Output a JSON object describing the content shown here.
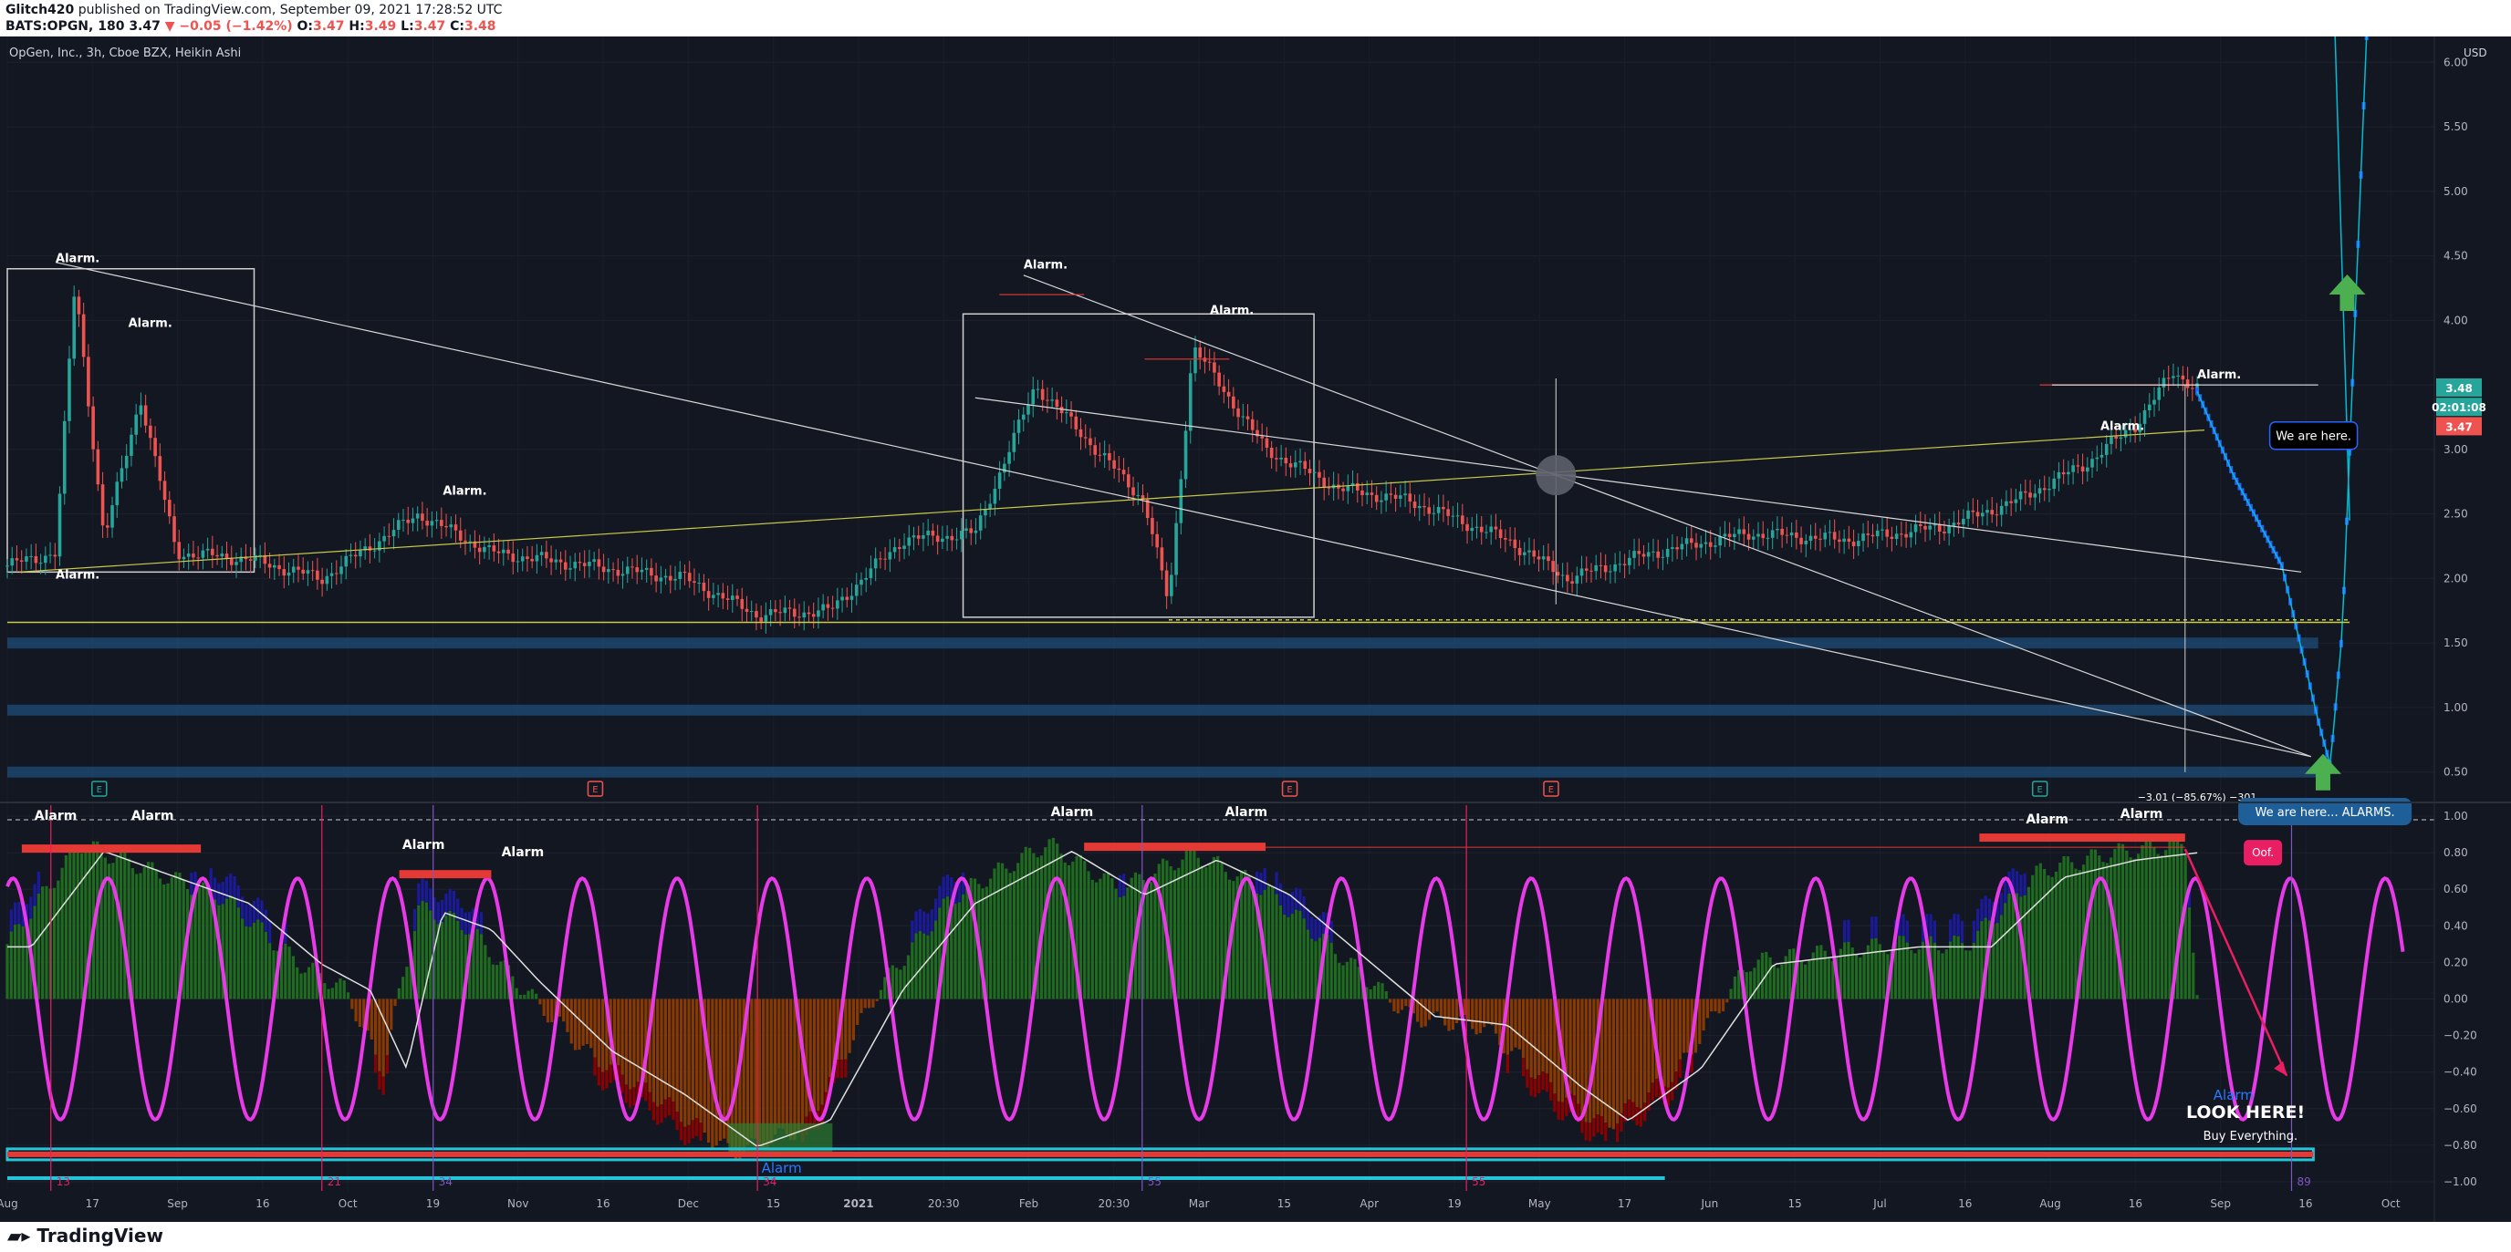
{
  "header": {
    "author": "Glitch420",
    "published": "published on TradingView.com, September 09, 2021 17:28:52 UTC",
    "ticker": "BATS:OPGN, 180",
    "last": "3.47",
    "change": "▼ −0.05 (−1.42%)",
    "ohlc": {
      "o": "3.47",
      "h": "3.49",
      "l": "3.47",
      "c": "3.48"
    }
  },
  "footer": {
    "brand": "TradingView"
  },
  "colors": {
    "background": "#131722",
    "up": "#26a69a",
    "down": "#ef5350",
    "trend": "#d8d8d8",
    "support": "#c9c94a",
    "zone": "#1f4e78",
    "sine": "#e83ae8",
    "hist_up": "#1f6b1f",
    "hist_dn": "#8a3a00",
    "hist_blue": "#1a1a9a",
    "hist_red": "#8b0000",
    "projection": "#2962ff",
    "arrow": "#4caf50"
  },
  "chart_data": [
    {
      "type": "line",
      "title": "OpGen, Inc., 3h, Cboe BZX, Heikin Ashi",
      "style": "heikin-ashi candles",
      "currency": "USD",
      "ylim": [
        0.3,
        6.2
      ],
      "y_ticks": [
        "6.00",
        "5.50",
        "5.00",
        "4.50",
        "4.00",
        "3.50",
        "3.00",
        "2.50",
        "2.00",
        "1.50",
        "1.00",
        "0.50"
      ],
      "x_labels": [
        "Aug",
        "17",
        "Sep",
        "16",
        "Oct",
        "19",
        "Nov",
        "16",
        "Dec",
        "15",
        "2021",
        "20:30",
        "Feb",
        "20:30",
        "Mar",
        "15",
        "Apr",
        "19",
        "May",
        "17",
        "Jun",
        "15",
        "Jul",
        "16",
        "Aug",
        "16",
        "Sep",
        "16",
        "Oct"
      ],
      "price_path": [
        [
          0,
          2.1
        ],
        [
          0.02,
          2.2
        ],
        [
          0.028,
          4.3
        ],
        [
          0.04,
          2.3
        ],
        [
          0.055,
          3.4
        ],
        [
          0.07,
          2.2
        ],
        [
          0.1,
          2.15
        ],
        [
          0.13,
          2.0
        ],
        [
          0.17,
          2.5
        ],
        [
          0.2,
          2.2
        ],
        [
          0.24,
          2.1
        ],
        [
          0.28,
          2.0
        ],
        [
          0.31,
          1.72
        ],
        [
          0.34,
          1.75
        ],
        [
          0.37,
          2.3
        ],
        [
          0.4,
          2.35
        ],
        [
          0.425,
          3.5
        ],
        [
          0.45,
          3.0
        ],
        [
          0.47,
          2.6
        ],
        [
          0.48,
          1.8
        ],
        [
          0.49,
          3.8
        ],
        [
          0.52,
          3.0
        ],
        [
          0.55,
          2.7
        ],
        [
          0.58,
          2.6
        ],
        [
          0.62,
          2.3
        ],
        [
          0.645,
          2.0
        ],
        [
          0.68,
          2.2
        ],
        [
          0.72,
          2.35
        ],
        [
          0.76,
          2.3
        ],
        [
          0.8,
          2.4
        ],
        [
          0.83,
          2.6
        ],
        [
          0.86,
          2.9
        ],
        [
          0.88,
          3.2
        ],
        [
          0.895,
          3.6
        ],
        [
          0.905,
          3.48
        ]
      ],
      "projection_path": [
        [
          0.905,
          3.45
        ],
        [
          0.92,
          2.8
        ],
        [
          0.94,
          2.1
        ],
        [
          0.955,
          0.9
        ],
        [
          0.96,
          0.55
        ],
        [
          0.965,
          1.6
        ],
        [
          0.975,
          6.2
        ]
      ],
      "last_price": "3.48",
      "countdown": "02:01:08",
      "last_close": "3.47",
      "measurement": "−3.01 (−85.67%) −301",
      "annotations": [
        {
          "text": "Alarm.",
          "x": 0.02,
          "y": 4.45
        },
        {
          "text": "Alarm.",
          "x": 0.05,
          "y": 3.95
        },
        {
          "text": "Alarm.",
          "x": 0.02,
          "y": 2.0
        },
        {
          "text": "Alarm.",
          "x": 0.18,
          "y": 2.65
        },
        {
          "text": "Alarm.",
          "x": 0.42,
          "y": 4.4
        },
        {
          "text": "Alarm.",
          "x": 0.497,
          "y": 4.05
        },
        {
          "text": "Alarm.",
          "x": 0.865,
          "y": 3.15
        },
        {
          "text": "Alarm.",
          "x": 0.905,
          "y": 3.55
        },
        {
          "text": "We are here.",
          "x": 0.935,
          "y": 3.1
        }
      ],
      "earnings_markers": [
        {
          "x": 0.038,
          "kind": "up"
        },
        {
          "x": 0.243,
          "kind": "down"
        },
        {
          "x": 0.53,
          "kind": "down"
        },
        {
          "x": 0.638,
          "kind": "down"
        },
        {
          "x": 0.84,
          "kind": "up"
        }
      ]
    },
    {
      "type": "bar",
      "title": "",
      "ylim": [
        -1.05,
        1.05
      ],
      "y_ticks": [
        "1.00",
        "0.80",
        "0.60",
        "0.40",
        "0.20",
        "0.00",
        "−0.20",
        "−0.40",
        "−0.60",
        "−0.80",
        "−1.00"
      ],
      "histogram_profile": [
        [
          0,
          0.3
        ],
        [
          0.03,
          0.85
        ],
        [
          0.06,
          0.7
        ],
        [
          0.09,
          0.55
        ],
        [
          0.12,
          0.2
        ],
        [
          0.14,
          0.05
        ],
        [
          0.155,
          -0.4
        ],
        [
          0.17,
          0.5
        ],
        [
          0.19,
          0.4
        ],
        [
          0.21,
          0.1
        ],
        [
          0.24,
          -0.3
        ],
        [
          0.27,
          -0.55
        ],
        [
          0.3,
          -0.85
        ],
        [
          0.33,
          -0.7
        ],
        [
          0.36,
          0.05
        ],
        [
          0.39,
          0.55
        ],
        [
          0.43,
          0.85
        ],
        [
          0.46,
          0.6
        ],
        [
          0.49,
          0.8
        ],
        [
          0.52,
          0.6
        ],
        [
          0.55,
          0.25
        ],
        [
          0.58,
          -0.1
        ],
        [
          0.61,
          -0.15
        ],
        [
          0.64,
          -0.5
        ],
        [
          0.66,
          -0.7
        ],
        [
          0.69,
          -0.4
        ],
        [
          0.72,
          0.2
        ],
        [
          0.75,
          0.25
        ],
        [
          0.78,
          0.3
        ],
        [
          0.81,
          0.3
        ],
        [
          0.84,
          0.7
        ],
        [
          0.87,
          0.8
        ],
        [
          0.9,
          0.85
        ],
        [
          0.905,
          0.0
        ]
      ],
      "sine_periods": 25.5,
      "sine_amplitude": 0.66,
      "cycle_lines": [
        {
          "x": 0.018,
          "label": "13",
          "color": "#e91e63"
        },
        {
          "x": 0.13,
          "label": "21",
          "color": "#e91e63"
        },
        {
          "x": 0.176,
          "label": "34",
          "color": "#7e57c2"
        },
        {
          "x": 0.31,
          "label": "34",
          "color": "#e91e63"
        },
        {
          "x": 0.469,
          "label": "55",
          "color": "#7e57c2"
        },
        {
          "x": 0.603,
          "label": "55",
          "color": "#e91e63"
        },
        {
          "x": 0.944,
          "label": "89",
          "color": "#7e57c2"
        }
      ],
      "annotations": [
        {
          "text": "Alarm",
          "x": 0.02,
          "y": 0.98
        },
        {
          "text": "Alarm",
          "x": 0.06,
          "y": 0.98
        },
        {
          "text": "Alarm",
          "x": 0.172,
          "y": 0.82
        },
        {
          "text": "Alarm",
          "x": 0.213,
          "y": 0.78
        },
        {
          "text": "Alarm",
          "x": 0.44,
          "y": 1.0
        },
        {
          "text": "Alarm",
          "x": 0.512,
          "y": 1.0
        },
        {
          "text": "Alarm",
          "x": 0.843,
          "y": 0.96
        },
        {
          "text": "Alarm",
          "x": 0.882,
          "y": 0.99
        },
        {
          "text": "Alarm",
          "x": 0.32,
          "y": -0.95
        },
        {
          "text": "We are here... ALARMS.",
          "x": 0.925,
          "y": 1.02
        },
        {
          "text": "Oof.",
          "x": 0.925,
          "y": 0.8
        },
        {
          "text": "Alarm",
          "x": 0.92,
          "y": -0.55
        },
        {
          "text": "LOOK  HERE!",
          "x": 0.925,
          "y": -0.65
        },
        {
          "text": "Buy Everything.",
          "x": 0.927,
          "y": -0.77
        }
      ]
    }
  ]
}
